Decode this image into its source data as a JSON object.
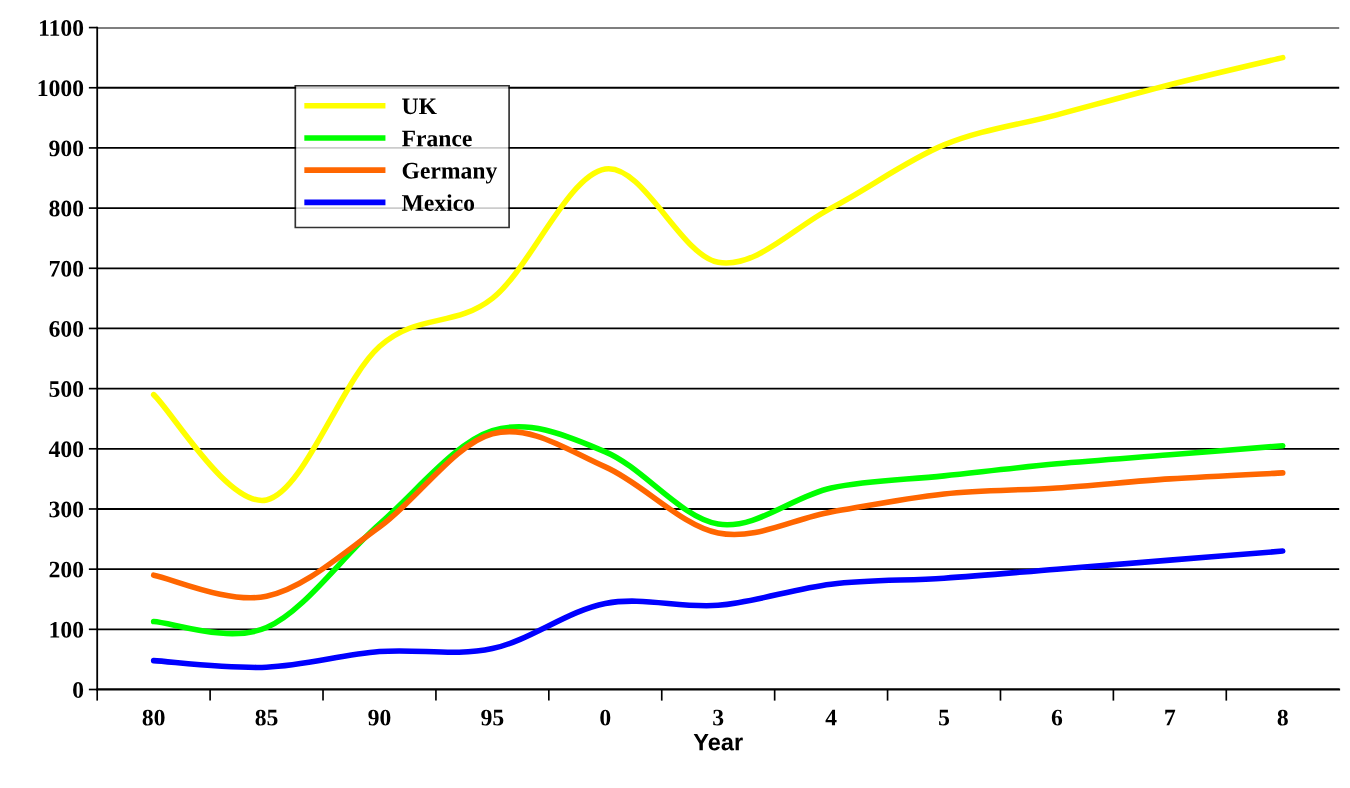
{
  "chart_data": {
    "type": "line",
    "xlabel": "Year",
    "categories": [
      "80",
      "85",
      "90",
      "95",
      "0",
      "3",
      "4",
      "5",
      "6",
      "7",
      "8"
    ],
    "series": [
      {
        "name": "UK",
        "color": "#ffff00",
        "values": [
          490,
          315,
          570,
          650,
          865,
          710,
          800,
          905,
          955,
          1005,
          1050
        ]
      },
      {
        "name": "France",
        "color": "#00ff00",
        "values": [
          113,
          103,
          275,
          430,
          395,
          275,
          335,
          355,
          375,
          390,
          405
        ]
      },
      {
        "name": "Germany",
        "color": "#ff6600",
        "values": [
          190,
          155,
          270,
          425,
          370,
          260,
          295,
          325,
          335,
          350,
          360
        ]
      },
      {
        "name": "Mexico",
        "color": "#0000ff",
        "values": [
          48,
          37,
          63,
          68,
          143,
          140,
          175,
          185,
          200,
          215,
          230
        ]
      }
    ],
    "ylim": [
      0,
      1100
    ],
    "yticks": [
      0,
      100,
      200,
      300,
      400,
      500,
      600,
      700,
      800,
      900,
      1000,
      1100
    ],
    "grid": "y",
    "legend": "top left",
    "marker": "none",
    "line_style": "solid"
  }
}
